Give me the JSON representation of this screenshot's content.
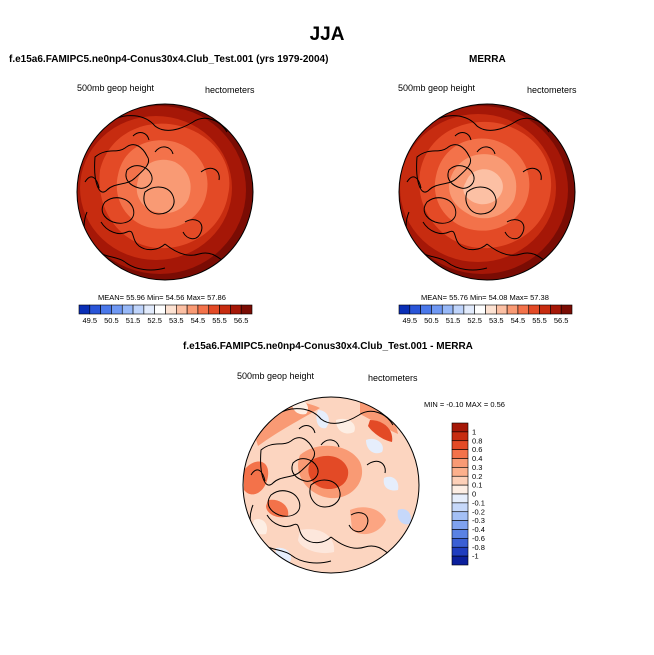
{
  "main_title": "JJA",
  "panels": {
    "top_left": {
      "title": "f.e15a6.FAMIPC5.ne0np4-Conus30x4.Club_Test.001 (yrs 1979-2004)",
      "left_label": "500mb geop height",
      "right_label": "hectometers",
      "stats": {
        "mean_label": "MEAN=",
        "mean": "55.96",
        "min_label": "Min=",
        "min": "54.56",
        "max_label": "Max=",
        "max": "57.86"
      }
    },
    "top_right": {
      "title": "MERRA",
      "left_label": "500mb geop height",
      "right_label": "hectometers",
      "stats": {
        "mean_label": "MEAN=",
        "mean": "55.76",
        "min_label": "Min=",
        "min": "54.08",
        "max_label": "Max=",
        "max": "57.38"
      }
    },
    "bottom": {
      "title": "f.e15a6.FAMIPC5.ne0np4-Conus30x4.Club_Test.001 - MERRA",
      "left_label": "500mb geop height",
      "right_label": "hectometers",
      "min_label": "MIN =",
      "min": "-0.10",
      "max_label": "MAX =",
      "max": "0.56"
    }
  },
  "chart_data": [
    {
      "type": "heatmap",
      "projection": "north-polar-stereographic",
      "title": "f.e15a6.FAMIPC5.ne0np4-Conus30x4.Club_Test.001 (yrs 1979-2004)",
      "variable": "500mb geop height",
      "units": "hectometers",
      "mean": 55.96,
      "min": 54.56,
      "max": 57.86,
      "colorbar": {
        "orientation": "horizontal",
        "levels": [
          49.5,
          50,
          50.5,
          51,
          51.5,
          52,
          52.5,
          53,
          53.5,
          54,
          54.5,
          55,
          55.5,
          56,
          56.5
        ],
        "tick_labels": [
          "49.5",
          "50.5",
          "51.5",
          "52.5",
          "53.5",
          "54.5",
          "55.5",
          "56.5"
        ],
        "colors": [
          "#0a2fb6",
          "#2a55d8",
          "#4a78ea",
          "#6f98f3",
          "#97b8f8",
          "#bfd4fb",
          "#e2ebfc",
          "#ffffff",
          "#fde2d2",
          "#fcc0a4",
          "#f99a74",
          "#f3724a",
          "#e34a26",
          "#c72c10",
          "#a51707",
          "#7a0c04"
        ]
      },
      "field_levels_shown": [
        "#7a0c04",
        "#a51707",
        "#c72c10",
        "#e34a26",
        "#f3724a",
        "#f99a74"
      ]
    },
    {
      "type": "heatmap",
      "projection": "north-polar-stereographic",
      "title": "MERRA",
      "variable": "500mb geop height",
      "units": "hectometers",
      "mean": 55.76,
      "min": 54.08,
      "max": 57.38,
      "colorbar": {
        "orientation": "horizontal",
        "levels": [
          49.5,
          50,
          50.5,
          51,
          51.5,
          52,
          52.5,
          53,
          53.5,
          54,
          54.5,
          55,
          55.5,
          56,
          56.5
        ],
        "tick_labels": [
          "49.5",
          "50.5",
          "51.5",
          "52.5",
          "53.5",
          "54.5",
          "55.5",
          "56.5"
        ],
        "colors": [
          "#0a2fb6",
          "#2a55d8",
          "#4a78ea",
          "#6f98f3",
          "#97b8f8",
          "#bfd4fb",
          "#e2ebfc",
          "#ffffff",
          "#fde2d2",
          "#fcc0a4",
          "#f99a74",
          "#f3724a",
          "#e34a26",
          "#c72c10",
          "#a51707",
          "#7a0c04"
        ]
      },
      "field_levels_shown": [
        "#7a0c04",
        "#a51707",
        "#c72c10",
        "#e34a26",
        "#f3724a",
        "#f99a74",
        "#fcc0a4"
      ]
    },
    {
      "type": "heatmap",
      "projection": "north-polar-stereographic",
      "title": "f.e15a6.FAMIPC5.ne0np4-Conus30x4.Club_Test.001 - MERRA",
      "variable": "500mb geop height",
      "units": "hectometers",
      "min": -0.1,
      "max": 0.56,
      "colorbar": {
        "orientation": "vertical",
        "tick_labels": [
          "1",
          "0.8",
          "0.6",
          "0.4",
          "0.3",
          "0.2",
          "0.1",
          "0",
          "-0.1",
          "-0.2",
          "-0.3",
          "-0.4",
          "-0.6",
          "-0.8",
          "-1"
        ],
        "colors": [
          "#a51707",
          "#c72c10",
          "#e34a26",
          "#f3724a",
          "#f99a74",
          "#fcb08c",
          "#fdd0b8",
          "#fdeee4",
          "#e6eefc",
          "#c6d8fa",
          "#a4c0f6",
          "#7fa2ef",
          "#5a82e4",
          "#3a5fd4",
          "#1f3dbf",
          "#0b1f9c"
        ]
      }
    }
  ]
}
